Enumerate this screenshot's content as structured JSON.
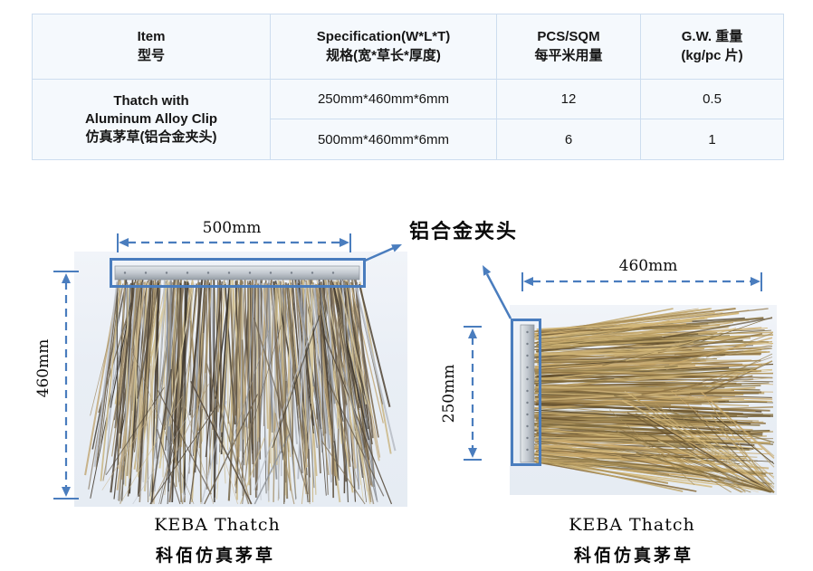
{
  "table": {
    "headers": [
      {
        "line1": "Item",
        "line2": "型号"
      },
      {
        "line1": "Specification(W*L*T)",
        "line2": "规格(宽*草长*厚度)"
      },
      {
        "line1": "PCS/SQM",
        "line2": "每平米用量"
      },
      {
        "line1": "G.W. 重量",
        "line2": "(kg/pc 片)"
      }
    ],
    "item_cell": {
      "line1": "Thatch with",
      "line2": "Aluminum Alloy Clip",
      "line3": "仿真茅草(铝合金夹头)"
    },
    "rows": [
      {
        "spec": "250mm*460mm*6mm",
        "pcs": "12",
        "gw": "0.5"
      },
      {
        "spec": "500mm*460mm*6mm",
        "pcs": "6",
        "gw": "1"
      }
    ]
  },
  "diagram": {
    "callout_label": "铝合金夹头",
    "left_figure": {
      "width_label": "500mm",
      "height_label": "460mm",
      "caption_en": "KEBA Thatch",
      "caption_zh": "科佰仿真茅草"
    },
    "right_figure": {
      "width_label": "460mm",
      "height_label": "250mm",
      "caption_en": "KEBA Thatch",
      "caption_zh": "科佰仿真茅草"
    }
  },
  "colors": {
    "accent_blue": "#4a7dbe",
    "table_border": "#cdddef",
    "table_bg": "#f5f9fd",
    "photo_bg": "#e9eef5",
    "clip_metal_light": "#dde1e5",
    "clip_metal_dark": "#9aa1a9",
    "left_strand_palette": [
      "#554a3c",
      "#4a4136",
      "#6e6250",
      "#857660",
      "#a4906a",
      "#c7b189",
      "#d9cba0",
      "#8d9197",
      "#b9bec6",
      "#3b352c",
      "#7d6f55",
      "#cbb98b"
    ],
    "right_strand_palette": [
      "#b3985f",
      "#c8ad74",
      "#8c7142",
      "#a58a55",
      "#6b5530",
      "#d3b87a",
      "#5a4a2e",
      "#927e4e",
      "#bfa468",
      "#7c683d",
      "#caa96b"
    ]
  }
}
